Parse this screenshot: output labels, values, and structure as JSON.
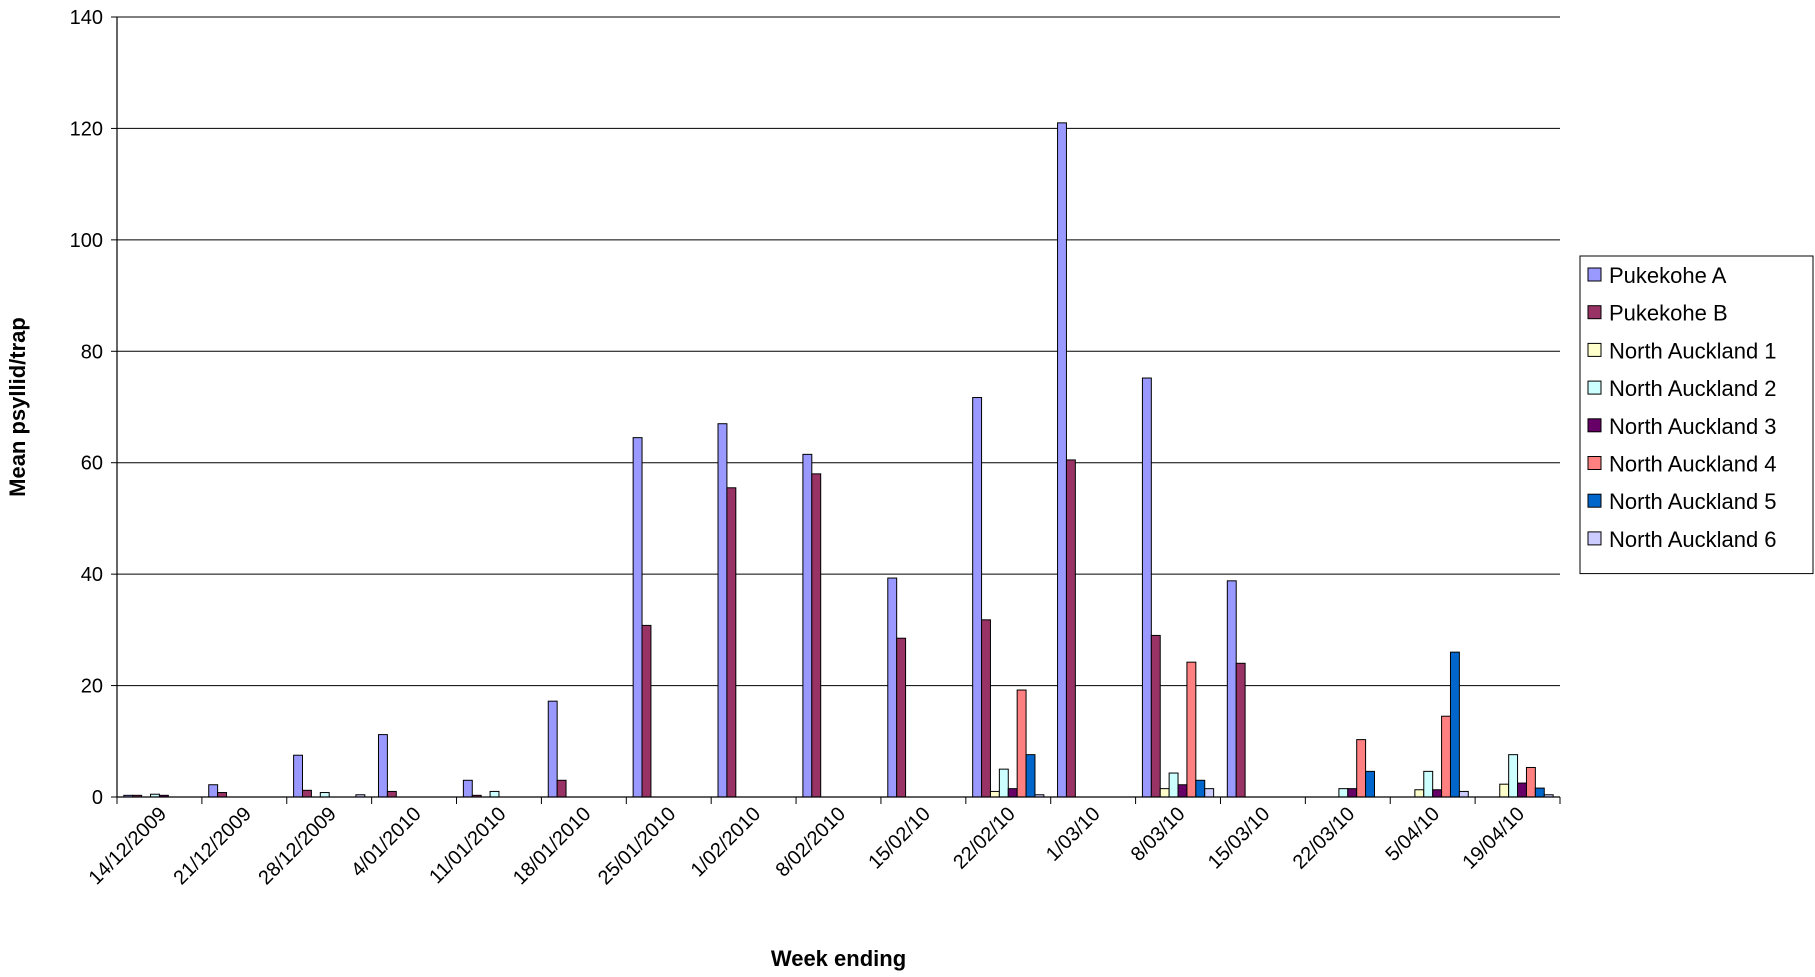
{
  "chart_data": {
    "type": "bar",
    "xlabel": "Week ending",
    "ylabel": "Mean psyllid/trap",
    "ylim": [
      0,
      140
    ],
    "yticks": [
      0,
      20,
      40,
      60,
      80,
      100,
      120,
      140
    ],
    "grid": true,
    "legend_position": "right",
    "categories": [
      "14/12/2009",
      "21/12/2009",
      "28/12/2009",
      "4/01/2010",
      "11/01/2010",
      "18/01/2010",
      "25/01/2010",
      "1/02/2010",
      "8/02/2010",
      "15/02/10",
      "22/02/10",
      "1/03/10",
      "8/03/10",
      "15/03/10",
      "22/03/10",
      "5/04/10",
      "19/04/10"
    ],
    "series": [
      {
        "name": "Pukekohe A",
        "color": "#9999ff",
        "values": [
          0.3,
          2.2,
          7.5,
          11.2,
          3.0,
          17.2,
          64.5,
          67.0,
          61.5,
          39.3,
          71.7,
          121.0,
          75.2,
          38.8,
          null,
          null,
          null
        ]
      },
      {
        "name": "Pukekohe B",
        "color": "#993366",
        "values": [
          0.3,
          0.8,
          1.2,
          1.0,
          0.3,
          3.0,
          30.8,
          55.5,
          58.0,
          28.5,
          31.8,
          60.5,
          29.0,
          24.0,
          null,
          null,
          null
        ]
      },
      {
        "name": "North Auckland 1",
        "color": "#ffffcc",
        "values": [
          null,
          null,
          null,
          null,
          null,
          null,
          null,
          null,
          null,
          null,
          1.0,
          null,
          1.5,
          null,
          null,
          1.3,
          2.3
        ]
      },
      {
        "name": "North Auckland 2",
        "color": "#ccffff",
        "values": [
          0.5,
          null,
          0.8,
          null,
          1.0,
          null,
          null,
          null,
          null,
          null,
          5.0,
          null,
          4.3,
          null,
          1.5,
          4.6,
          7.6
        ]
      },
      {
        "name": "North Auckland 3",
        "color": "#660066",
        "values": [
          0.3,
          null,
          null,
          null,
          null,
          null,
          null,
          null,
          null,
          null,
          1.5,
          null,
          2.2,
          null,
          1.5,
          1.3,
          2.5
        ]
      },
      {
        "name": "North Auckland 4",
        "color": "#ff8080",
        "values": [
          null,
          null,
          null,
          null,
          null,
          null,
          null,
          null,
          null,
          null,
          19.2,
          null,
          24.2,
          null,
          10.3,
          14.5,
          5.3
        ]
      },
      {
        "name": "North Auckland 5",
        "color": "#0066cc",
        "values": [
          null,
          null,
          null,
          null,
          null,
          null,
          null,
          null,
          null,
          null,
          7.6,
          null,
          3.0,
          null,
          4.6,
          26.0,
          1.6
        ]
      },
      {
        "name": "North Auckland 6",
        "color": "#ccccff",
        "values": [
          null,
          null,
          0.4,
          null,
          null,
          null,
          null,
          null,
          null,
          null,
          0.4,
          null,
          1.5,
          null,
          null,
          1.0,
          0.4
        ]
      }
    ]
  }
}
